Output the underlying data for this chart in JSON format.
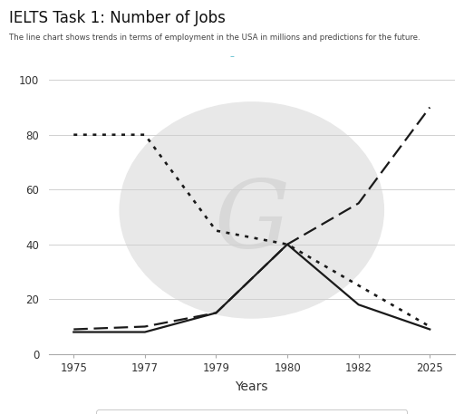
{
  "title": "IELTS Task 1: Number of Jobs",
  "subtitle": "The line chart shows trends in terms of employment in the USA in millions and predictions for the future.",
  "xlabel": "Years",
  "x_ticks": [
    1975,
    1977,
    1979,
    1980,
    1982,
    2025
  ],
  "ylim": [
    0,
    105
  ],
  "yticks": [
    0,
    20,
    40,
    60,
    80,
    100
  ],
  "manufacturing": {
    "x": [
      1975,
      1977,
      1979,
      1980,
      1982,
      2025
    ],
    "y": [
      8,
      8,
      15,
      40,
      18,
      9
    ]
  },
  "services": {
    "x": [
      1975,
      1977,
      1979,
      1980,
      1982,
      2025
    ],
    "y": [
      9,
      10,
      15,
      40,
      55,
      90
    ]
  },
  "agriculture": {
    "x": [
      1975,
      1977,
      1979,
      1980,
      1982,
      2025
    ],
    "y": [
      80,
      80,
      45,
      40,
      25,
      10
    ]
  },
  "line_color": "#1a1a1a",
  "bg_color": "#ffffff",
  "grid_color": "#d0d0d0",
  "watermark_circle_color": "#e8e8e8",
  "watermark_text_color": "#d8d8d8",
  "title_color": "#111111",
  "subtitle_color": "#444444",
  "tick_color": "#333333",
  "axis_color": "#aaaaaa",
  "cyan_dash_color": "#55bbcc"
}
